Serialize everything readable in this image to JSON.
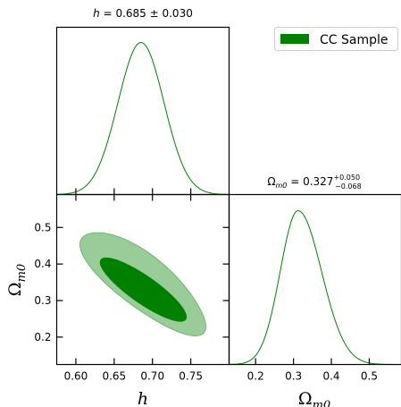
{
  "chart_data": [
    {
      "type": "line",
      "panel": "marginal-h",
      "title_var": "h",
      "title_value": "= 0.685 ± 0.030",
      "series": [
        {
          "name": "CC Sample",
          "mean": 0.685,
          "sigma": 0.03
        }
      ],
      "xlim": [
        0.575,
        0.8
      ],
      "x_ticks": [
        0.6,
        0.65,
        0.7,
        0.75
      ],
      "y_ticks": []
    },
    {
      "type": "line",
      "panel": "marginal-omega",
      "title_var": "Ω",
      "title_var_sub": "m0",
      "title_value": "= 0.327",
      "title_sup": "+0.050",
      "title_sub": "−0.068",
      "series": [
        {
          "name": "CC Sample",
          "mode": 0.312,
          "sigma_plus": 0.05,
          "sigma_minus": 0.068
        }
      ],
      "xlim": [
        0.13,
        0.585
      ],
      "x_ticks": [
        0.2,
        0.3,
        0.4,
        0.5
      ],
      "x_tick_labels": [
        "0.2",
        "0.3",
        "0.4",
        "0.5"
      ],
      "xlabel": "Ω",
      "xlabel_sub": "m0"
    },
    {
      "type": "scatter",
      "panel": "joint-contours",
      "xlim": [
        0.575,
        0.8
      ],
      "ylim": [
        0.125,
        0.59
      ],
      "x_ticks": [
        0.6,
        0.65,
        0.7,
        0.75
      ],
      "x_tick_labels": [
        "0.60",
        "0.65",
        "0.70",
        "0.75"
      ],
      "y_ticks": [
        0.2,
        0.3,
        0.4,
        0.5
      ],
      "y_tick_labels": [
        "0.2",
        "0.3",
        "0.4",
        "0.5"
      ],
      "xlabel": "h",
      "ylabel": "Ω",
      "ylabel_sub": "m0",
      "contours": [
        {
          "level": "2-sigma",
          "center": [
            0.688,
            0.35
          ],
          "fill": "#99cc99"
        },
        {
          "level": "1-sigma",
          "center": [
            0.688,
            0.33
          ],
          "fill": "#008000"
        }
      ]
    }
  ],
  "legend": {
    "label": "CC Sample",
    "color": "#008000",
    "position": "top-right"
  },
  "colors": {
    "line": "#008000",
    "inner": "#008000",
    "outer": "#99cc99",
    "outer_edge": "#5fae5f"
  }
}
